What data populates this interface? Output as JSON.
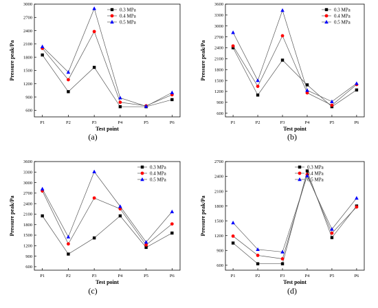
{
  "chart_data": [
    {
      "type": "line",
      "panel_label": "(a)",
      "xlabel": "Test point",
      "ylabel": "Pressure peak/Pa",
      "categories": [
        "P1",
        "P2",
        "P3",
        "P4",
        "P5",
        "P6"
      ],
      "yticks": [
        600,
        900,
        1200,
        1500,
        1800,
        2100,
        2400,
        2700,
        3000
      ],
      "ylim": [
        450,
        3000
      ],
      "legend": "top-center",
      "series": [
        {
          "name": "0.3 MPa",
          "color": "#000000",
          "marker": "square",
          "values": [
            1850,
            1020,
            1570,
            680,
            680,
            840
          ]
        },
        {
          "name": "0.4 MPa",
          "color": "#ff0000",
          "marker": "circle",
          "values": [
            2000,
            1290,
            2380,
            780,
            700,
            950
          ]
        },
        {
          "name": "0.5 MPa",
          "color": "#0000ff",
          "marker": "triangle",
          "values": [
            2040,
            1460,
            2900,
            880,
            690,
            1000
          ]
        }
      ]
    },
    {
      "type": "line",
      "panel_label": "(b)",
      "xlabel": "Test point",
      "ylabel": "Pressure peak/Pa",
      "categories": [
        "P1",
        "P2",
        "P3",
        "P4",
        "P5",
        "P6"
      ],
      "yticks": [
        600,
        900,
        1200,
        1500,
        1800,
        2100,
        2400,
        2700,
        3000,
        3300,
        3600
      ],
      "ylim": [
        500,
        3600
      ],
      "legend": "top-right",
      "series": [
        {
          "name": "0.3 MPa",
          "color": "#000000",
          "marker": "square",
          "values": [
            2400,
            1100,
            2060,
            1380,
            780,
            1240
          ]
        },
        {
          "name": "0.4 MPa",
          "color": "#ff0000",
          "marker": "circle",
          "values": [
            2450,
            1340,
            2730,
            1160,
            820,
            1390
          ]
        },
        {
          "name": "0.5 MPa",
          "color": "#0000ff",
          "marker": "triangle",
          "values": [
            2820,
            1500,
            3430,
            1230,
            920,
            1420
          ]
        }
      ]
    },
    {
      "type": "line",
      "panel_label": "(c)",
      "xlabel": "Test point",
      "ylabel": "Pressure peak/Pa",
      "categories": [
        "P1",
        "P2",
        "P3",
        "P4",
        "P5",
        "P6"
      ],
      "yticks": [
        600,
        900,
        1200,
        1500,
        1800,
        2100,
        2400,
        2700,
        3000,
        3300,
        3600
      ],
      "ylim": [
        500,
        3600
      ],
      "legend": "top-right",
      "series": [
        {
          "name": "0.3 MPa",
          "color": "#000000",
          "marker": "square",
          "values": [
            2050,
            960,
            1420,
            2050,
            1150,
            1560
          ]
        },
        {
          "name": "0.4 MPa",
          "color": "#ff0000",
          "marker": "circle",
          "values": [
            2760,
            1250,
            2560,
            2250,
            1220,
            1820
          ]
        },
        {
          "name": "0.5 MPa",
          "color": "#0000ff",
          "marker": "triangle",
          "values": [
            2820,
            1450,
            3310,
            2320,
            1300,
            2170
          ]
        }
      ]
    },
    {
      "type": "line",
      "panel_label": "(d)",
      "xlabel": "Test point",
      "ylabel": "Pressure peak/Pa",
      "categories": [
        "P1",
        "P2",
        "P3",
        "P4",
        "P5",
        "P6"
      ],
      "yticks": [
        600,
        900,
        1200,
        1500,
        1800,
        2100,
        2400,
        2700
      ],
      "ylim": [
        500,
        2700
      ],
      "legend": "top-center",
      "series": [
        {
          "name": "0.3 MPa",
          "color": "#000000",
          "marker": "square",
          "values": [
            1050,
            630,
            630,
            2510,
            1160,
            1800
          ]
        },
        {
          "name": "0.4 MPa",
          "color": "#ff0000",
          "marker": "circle",
          "values": [
            1190,
            800,
            730,
            2440,
            1250,
            1780
          ]
        },
        {
          "name": "0.5 MPa",
          "color": "#0000ff",
          "marker": "triangle",
          "values": [
            1460,
            920,
            870,
            2410,
            1330,
            1960
          ]
        }
      ]
    }
  ]
}
